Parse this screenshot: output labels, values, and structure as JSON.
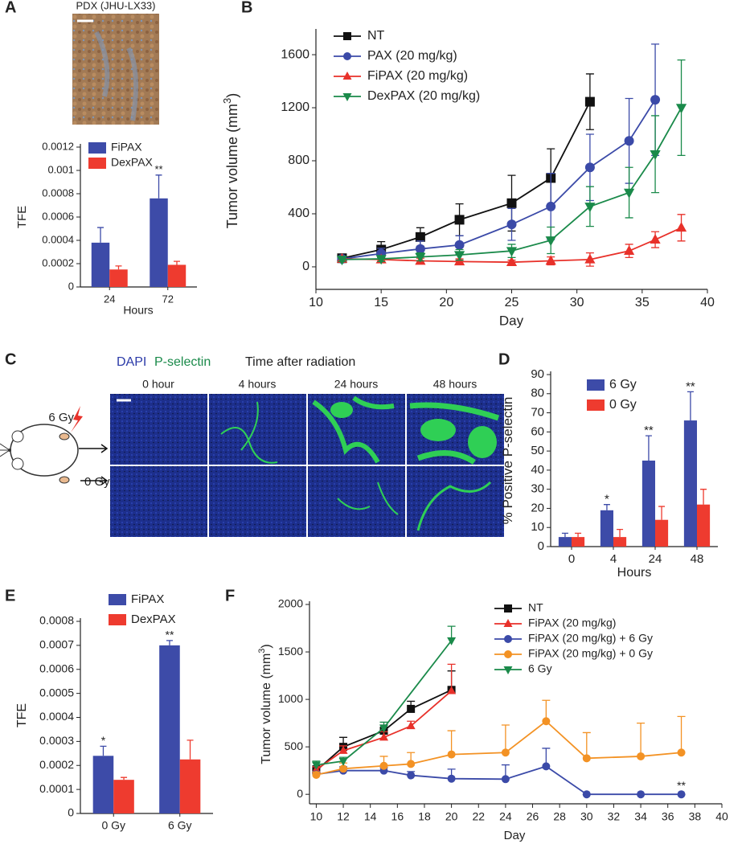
{
  "chart_data": [
    {
      "type": "bar",
      "panel_label": "A",
      "image_title": "PDX (JHU-LX33)",
      "categories": [
        "24",
        "72"
      ],
      "x_label": "Hours",
      "y_label": "TFE",
      "ylim": [
        0,
        0.0012
      ],
      "yticks": [
        0,
        0.0002,
        0.0004,
        0.0006,
        0.0008,
        0.001,
        0.0012
      ],
      "error_bars": "upper",
      "series": [
        {
          "name": "FiPAX",
          "color": "#3d4ba8",
          "values": [
            0.00038,
            0.00076
          ],
          "errors": [
            0.00013,
            0.0002
          ],
          "annotations": [
            null,
            "**"
          ]
        },
        {
          "name": "DexPAX",
          "color": "#ee3b2f",
          "values": [
            0.00015,
            0.00019
          ],
          "errors": [
            3e-05,
            3e-05
          ]
        }
      ]
    },
    {
      "type": "line",
      "panel_label": "B",
      "x_label": "Day",
      "y_label": "Tumor volume (mm",
      "y_label_sup": "3",
      "y_label_end": ")",
      "xlim": [
        10,
        40
      ],
      "xticks": [
        10,
        15,
        20,
        25,
        30,
        35,
        40
      ],
      "ylim": [
        -170,
        1770
      ],
      "yticks": [
        0,
        400,
        800,
        1200,
        1600
      ],
      "error_bars": "both",
      "series": [
        {
          "name": "NT",
          "color": "#111111",
          "marker": "square",
          "x": [
            12,
            15,
            18,
            21,
            25,
            28,
            31
          ],
          "values": [
            65,
            130,
            225,
            355,
            480,
            670,
            1245
          ],
          "errors": [
            20,
            60,
            70,
            120,
            210,
            220,
            210
          ]
        },
        {
          "name": "PAX (20 mg/kg)",
          "color": "#3b4aa8",
          "marker": "circle",
          "x": [
            12,
            15,
            18,
            21,
            25,
            28,
            31,
            34,
            36
          ],
          "values": [
            60,
            100,
            135,
            165,
            320,
            455,
            750,
            950,
            1260
          ],
          "errors": [
            20,
            40,
            60,
            70,
            120,
            250,
            250,
            320,
            420
          ]
        },
        {
          "name": "FiPAX (20 mg/kg)",
          "color": "#e8312a",
          "marker": "triangle-up",
          "x": [
            12,
            15,
            18,
            21,
            25,
            28,
            31,
            34,
            36,
            38
          ],
          "values": [
            60,
            55,
            45,
            40,
            35,
            45,
            55,
            120,
            205,
            295
          ],
          "errors": [
            15,
            20,
            20,
            20,
            15,
            30,
            50,
            50,
            60,
            100
          ]
        },
        {
          "name": "DexPAX (20 mg/kg)",
          "color": "#1a8a4a",
          "marker": "triangle-down",
          "x": [
            12,
            15,
            18,
            21,
            25,
            28,
            31,
            34,
            36,
            38
          ],
          "values": [
            55,
            60,
            75,
            90,
            120,
            200,
            455,
            560,
            850,
            1200
          ],
          "errors": [
            15,
            20,
            30,
            40,
            50,
            100,
            150,
            190,
            290,
            360
          ]
        }
      ]
    },
    {
      "type": "bar",
      "panel_label": "D",
      "categories": [
        "0",
        "4",
        "24",
        "48"
      ],
      "x_label": "Hours",
      "y_label": "% Positive P-selectin",
      "ylim": [
        0,
        90
      ],
      "yticks": [
        0,
        10,
        20,
        30,
        40,
        50,
        60,
        70,
        80,
        90
      ],
      "error_bars": "upper",
      "series": [
        {
          "name": "6 Gy",
          "color": "#3d4ba8",
          "values": [
            5,
            19,
            45,
            66
          ],
          "errors": [
            2,
            3,
            13,
            15
          ],
          "annotations": [
            null,
            "*",
            "**",
            "**"
          ]
        },
        {
          "name": "0 Gy",
          "color": "#ee3b2f",
          "values": [
            5,
            5,
            14,
            22
          ],
          "errors": [
            2,
            4,
            7,
            8
          ]
        }
      ]
    },
    {
      "type": "bar",
      "panel_label": "E",
      "categories": [
        "0 Gy",
        "6 Gy"
      ],
      "y_label": "TFE",
      "ylim": [
        0,
        0.0008
      ],
      "yticks": [
        0,
        0.0001,
        0.0002,
        0.0003,
        0.0004,
        0.0005,
        0.0006,
        0.0007,
        0.0008
      ],
      "error_bars": "upper",
      "series": [
        {
          "name": "FiPAX",
          "color": "#3d4ba8",
          "values": [
            0.00024,
            0.0007
          ],
          "errors": [
            4e-05,
            2e-05
          ],
          "annotations": [
            "*",
            "**"
          ]
        },
        {
          "name": "DexPAX",
          "color": "#ee3b2f",
          "values": [
            0.00014,
            0.000225
          ],
          "errors": [
            1e-05,
            8e-05
          ]
        }
      ]
    },
    {
      "type": "line",
      "panel_label": "F",
      "x_label": "Day",
      "y_label": "Tumor volume (mm",
      "y_label_sup": "3",
      "y_label_end": ")",
      "xlim": [
        9.5,
        40
      ],
      "xticks": [
        10,
        12,
        14,
        16,
        18,
        20,
        22,
        24,
        26,
        28,
        30,
        32,
        34,
        36,
        38,
        40
      ],
      "ylim": [
        -100,
        2000
      ],
      "yticks": [
        0,
        500,
        1000,
        1500,
        2000
      ],
      "error_bars": "upper",
      "series": [
        {
          "name": "NT",
          "color": "#111111",
          "marker": "square",
          "x": [
            10,
            12,
            15,
            17,
            20
          ],
          "values": [
            250,
            500,
            670,
            900,
            1100
          ],
          "errors": [
            50,
            100,
            60,
            80,
            200
          ]
        },
        {
          "name": "FiPAX (20 mg/kg)",
          "color": "#e8312a",
          "marker": "triangle-up",
          "x": [
            10,
            12,
            15,
            17,
            20
          ],
          "values": [
            260,
            460,
            600,
            720,
            1090
          ],
          "errors": [
            30,
            50,
            60,
            50,
            280
          ]
        },
        {
          "name": "FiPAX (20 mg/kg) + 6 Gy",
          "color": "#3b4aa8",
          "marker": "circle",
          "x": [
            10,
            12,
            15,
            17,
            20,
            24,
            27,
            30,
            34,
            37
          ],
          "values": [
            210,
            250,
            250,
            200,
            165,
            160,
            295,
            0,
            0,
            0
          ],
          "errors": [
            30,
            40,
            30,
            40,
            100,
            150,
            190,
            0,
            0,
            0
          ],
          "annotations": [
            null,
            null,
            null,
            null,
            null,
            null,
            null,
            null,
            null,
            "**"
          ]
        },
        {
          "name": "FiPAX (20 mg/kg) + 0 Gy",
          "color": "#f39224",
          "marker": "circle",
          "x": [
            10,
            12,
            15,
            17,
            20,
            24,
            27,
            30,
            34,
            37
          ],
          "values": [
            205,
            270,
            300,
            320,
            420,
            440,
            770,
            380,
            400,
            440
          ],
          "errors": [
            30,
            60,
            100,
            120,
            250,
            290,
            220,
            270,
            350,
            380
          ]
        },
        {
          "name": "6 Gy",
          "color": "#1a8a4a",
          "marker": "triangle-down",
          "x": [
            10,
            12,
            15,
            20
          ],
          "values": [
            310,
            350,
            700,
            1620
          ],
          "errors": [
            40,
            40,
            60,
            150
          ]
        }
      ]
    }
  ],
  "panel_c": {
    "label": "C",
    "stain_1": "DAPI",
    "stain_2": "P-selectin",
    "heading": "Time after radiation",
    "columns": [
      "0 hour",
      "4 hours",
      "24 hours",
      "48 hours"
    ],
    "rows": [
      "6 Gy",
      "0 Gy"
    ]
  }
}
